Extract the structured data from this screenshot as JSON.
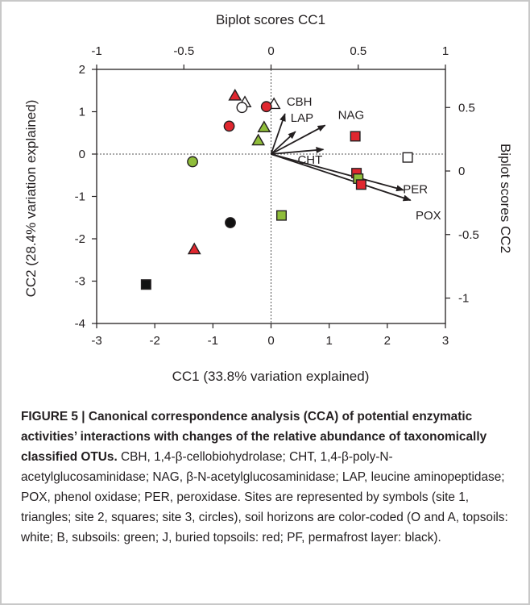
{
  "chart_data": {
    "type": "scatter",
    "title": "",
    "xlabel": "CC1 (33.8% variation explained)",
    "ylabel": "CC2 (28.4% variation explained)",
    "top_label": "Biplot scores CC1",
    "right_label": "Biplot scores CC2",
    "xlim": [
      -3,
      3
    ],
    "ylim": [
      -4,
      2
    ],
    "x_ticks": [
      "-3",
      "-2",
      "-1",
      "0",
      "1",
      "2",
      "3"
    ],
    "y_ticks": [
      "2",
      "1",
      "0",
      "-1",
      "-2",
      "-3",
      "-4"
    ],
    "top_ticks": [
      "-1",
      "-0.5",
      "0",
      "0.5",
      "1"
    ],
    "right_ticks": [
      "0.5",
      "0",
      "-0.5",
      "-1"
    ],
    "top_lim": [
      -1,
      1
    ],
    "right_lim": [
      -1.2,
      0.8
    ],
    "zero_lines": "dotted",
    "colors": {
      "red": "#e0272f",
      "green": "#8fbd3a",
      "black": "#111111",
      "white": "#ffffff",
      "stroke": "#231f20"
    },
    "points": [
      {
        "shape": "triangle",
        "fill": "red",
        "x": -0.62,
        "y": 1.38
      },
      {
        "shape": "triangle",
        "fill": "white",
        "x": -0.45,
        "y": 1.22
      },
      {
        "shape": "circle",
        "fill": "white",
        "x": -0.5,
        "y": 1.1
      },
      {
        "shape": "triangle",
        "fill": "white",
        "x": 0.05,
        "y": 1.18
      },
      {
        "shape": "circle",
        "fill": "red",
        "x": -0.08,
        "y": 1.12
      },
      {
        "shape": "circle",
        "fill": "red",
        "x": -0.72,
        "y": 0.66
      },
      {
        "shape": "triangle",
        "fill": "green",
        "x": -0.12,
        "y": 0.63
      },
      {
        "shape": "triangle",
        "fill": "green",
        "x": -0.22,
        "y": 0.32
      },
      {
        "shape": "circle",
        "fill": "green",
        "x": -1.35,
        "y": -0.18
      },
      {
        "shape": "circle",
        "fill": "black",
        "x": -0.7,
        "y": -1.62
      },
      {
        "shape": "triangle",
        "fill": "red",
        "x": -1.32,
        "y": -2.25
      },
      {
        "shape": "square",
        "fill": "black",
        "x": -2.15,
        "y": -3.08
      },
      {
        "shape": "square",
        "fill": "green",
        "x": 0.18,
        "y": -1.45
      },
      {
        "shape": "square",
        "fill": "red",
        "x": 1.45,
        "y": 0.42
      },
      {
        "shape": "square",
        "fill": "white",
        "x": 2.35,
        "y": -0.08
      },
      {
        "shape": "square",
        "fill": "red",
        "x": 1.47,
        "y": -0.45
      },
      {
        "shape": "square",
        "fill": "green",
        "x": 1.5,
        "y": -0.58
      },
      {
        "shape": "square",
        "fill": "red",
        "x": 1.55,
        "y": -0.72
      }
    ],
    "vectors": [
      {
        "label": "CBH",
        "x": 0.08,
        "y": 0.45
      },
      {
        "label": "LAP",
        "x": 0.14,
        "y": 0.31
      },
      {
        "label": "NAG",
        "x": 0.31,
        "y": 0.36
      },
      {
        "label": "CHT",
        "x": 0.3,
        "y": 0.17
      },
      {
        "label": "PER",
        "x": 0.76,
        "y": -0.15
      },
      {
        "label": "POX",
        "x": 0.8,
        "y": -0.23
      }
    ]
  },
  "caption": {
    "heading": "FIGURE 5 | Canonical correspondence analysis (CCA) of potential enzymatic activities’ interactions with changes of the relative abundance of taxonomically classified OTUs.",
    "body": " CBH, 1,4-β-cellobiohydrolase; CHT, 1,4-β-poly-N-acetylglucosaminidase; NAG, β-N-acetylglucosaminidase; LAP, leucine aminopeptidase; POX, phenol oxidase; PER, peroxidase. Sites are represented by symbols (site 1, triangles; site 2, squares; site 3, circles), soil horizons are color-coded (O and A, topsoils: white; B, subsoils: green; J, buried topsoils: red; PF, permafrost layer: black)."
  }
}
